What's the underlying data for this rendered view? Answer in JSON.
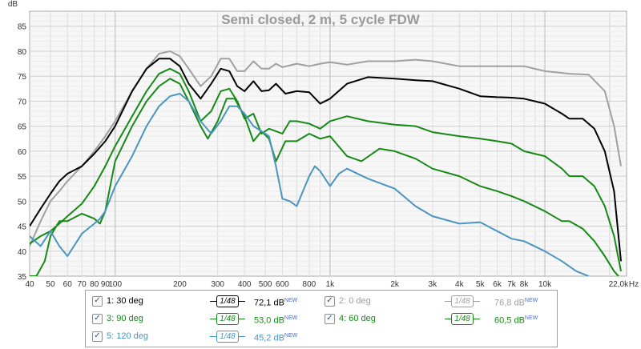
{
  "chart_data": {
    "type": "line",
    "title": "Semi closed, 2 m, 5 cycle FDW",
    "ylabel": "dB",
    "xunit": "Hz",
    "xscale": "log",
    "xlim": [
      40,
      24000
    ],
    "ylim": [
      35,
      88
    ],
    "yticks": [
      35,
      40,
      45,
      50,
      55,
      60,
      65,
      70,
      75,
      80,
      85
    ],
    "xticks": [
      {
        "v": 40,
        "label": "40"
      },
      {
        "v": 50,
        "label": "50"
      },
      {
        "v": 60,
        "label": "60"
      },
      {
        "v": 70,
        "label": "70"
      },
      {
        "v": 80,
        "label": "80"
      },
      {
        "v": 90,
        "label": "90"
      },
      {
        "v": 100,
        "label": "100"
      },
      {
        "v": 200,
        "label": "200"
      },
      {
        "v": 300,
        "label": "300"
      },
      {
        "v": 400,
        "label": "400"
      },
      {
        "v": 500,
        "label": "500"
      },
      {
        "v": 600,
        "label": "600"
      },
      {
        "v": 800,
        "label": "800"
      },
      {
        "v": 1000,
        "label": "1k"
      },
      {
        "v": 2000,
        "label": "2k"
      },
      {
        "v": 3000,
        "label": "3k"
      },
      {
        "v": 4000,
        "label": "4k"
      },
      {
        "v": 5000,
        "label": "5k"
      },
      {
        "v": 6000,
        "label": "6k"
      },
      {
        "v": 7000,
        "label": "7k"
      },
      {
        "v": 8000,
        "label": "8k"
      },
      {
        "v": 10000,
        "label": "10k"
      },
      {
        "v": 22000,
        "label": "22,0k"
      }
    ],
    "grid": true,
    "series": [
      {
        "name": "2: 0 deg",
        "color": "#a0a0a0",
        "points": [
          [
            40,
            41
          ],
          [
            45,
            46
          ],
          [
            50,
            50
          ],
          [
            55,
            52
          ],
          [
            60,
            54
          ],
          [
            70,
            57
          ],
          [
            80,
            60
          ],
          [
            90,
            63
          ],
          [
            100,
            66
          ],
          [
            120,
            72
          ],
          [
            140,
            76.5
          ],
          [
            160,
            79.5
          ],
          [
            180,
            80
          ],
          [
            200,
            79
          ],
          [
            220,
            76.5
          ],
          [
            250,
            73
          ],
          [
            280,
            75
          ],
          [
            310,
            78.5
          ],
          [
            340,
            78.5
          ],
          [
            370,
            76
          ],
          [
            400,
            76
          ],
          [
            440,
            78
          ],
          [
            480,
            76.5
          ],
          [
            520,
            76.5
          ],
          [
            560,
            77.5
          ],
          [
            600,
            76.8
          ],
          [
            700,
            77.5
          ],
          [
            800,
            77
          ],
          [
            900,
            77.5
          ],
          [
            1000,
            77.8
          ],
          [
            1200,
            77.3
          ],
          [
            1500,
            78
          ],
          [
            2000,
            78
          ],
          [
            2500,
            78.3
          ],
          [
            3000,
            78
          ],
          [
            4000,
            77
          ],
          [
            5000,
            77
          ],
          [
            6000,
            77
          ],
          [
            7000,
            77
          ],
          [
            8000,
            77
          ],
          [
            10000,
            76
          ],
          [
            13000,
            75.5
          ],
          [
            16000,
            75.3
          ],
          [
            19000,
            72
          ],
          [
            21000,
            65
          ],
          [
            22600,
            57
          ]
        ]
      },
      {
        "name": "1: 30 deg",
        "color": "#000000",
        "points": [
          [
            40,
            45
          ],
          [
            45,
            48.5
          ],
          [
            50,
            51.5
          ],
          [
            55,
            54
          ],
          [
            60,
            55.5
          ],
          [
            70,
            57
          ],
          [
            80,
            59.5
          ],
          [
            90,
            62
          ],
          [
            100,
            65
          ],
          [
            120,
            72
          ],
          [
            140,
            76.5
          ],
          [
            160,
            78.5
          ],
          [
            180,
            78.5
          ],
          [
            200,
            77
          ],
          [
            220,
            73.5
          ],
          [
            250,
            70.5
          ],
          [
            280,
            73.5
          ],
          [
            310,
            76.5
          ],
          [
            340,
            76
          ],
          [
            370,
            73
          ],
          [
            400,
            72
          ],
          [
            440,
            74
          ],
          [
            480,
            72
          ],
          [
            520,
            72.2
          ],
          [
            560,
            73.5
          ],
          [
            620,
            71.5
          ],
          [
            700,
            72
          ],
          [
            800,
            71.8
          ],
          [
            900,
            69.5
          ],
          [
            1000,
            70.5
          ],
          [
            1200,
            73.5
          ],
          [
            1500,
            74.8
          ],
          [
            2000,
            74.5
          ],
          [
            2500,
            74.2
          ],
          [
            3000,
            74
          ],
          [
            4000,
            72.5
          ],
          [
            5000,
            71
          ],
          [
            6000,
            70.8
          ],
          [
            7000,
            70.7
          ],
          [
            8000,
            70.5
          ],
          [
            10000,
            69.5
          ],
          [
            12000,
            67.5
          ],
          [
            13000,
            66.5
          ],
          [
            15000,
            66.5
          ],
          [
            17000,
            64.5
          ],
          [
            19000,
            60
          ],
          [
            21000,
            52
          ],
          [
            22600,
            38
          ]
        ]
      },
      {
        "name": "4: 60 deg",
        "color": "#168a16",
        "points": [
          [
            40,
            41.5
          ],
          [
            45,
            43
          ],
          [
            50,
            44
          ],
          [
            55,
            45.5
          ],
          [
            60,
            47
          ],
          [
            70,
            49.5
          ],
          [
            80,
            53
          ],
          [
            90,
            57
          ],
          [
            100,
            61
          ],
          [
            120,
            67
          ],
          [
            140,
            72
          ],
          [
            160,
            75.5
          ],
          [
            180,
            76.5
          ],
          [
            200,
            75.5
          ],
          [
            220,
            72
          ],
          [
            250,
            66
          ],
          [
            280,
            68
          ],
          [
            310,
            72
          ],
          [
            340,
            72.5
          ],
          [
            370,
            70
          ],
          [
            400,
            66.5
          ],
          [
            440,
            67.5
          ],
          [
            480,
            63.5
          ],
          [
            520,
            64.5
          ],
          [
            560,
            64
          ],
          [
            600,
            63.5
          ],
          [
            650,
            66
          ],
          [
            700,
            66
          ],
          [
            800,
            65.5
          ],
          [
            900,
            64.5
          ],
          [
            1000,
            66
          ],
          [
            1200,
            67
          ],
          [
            1500,
            66
          ],
          [
            2000,
            65.3
          ],
          [
            2500,
            65
          ],
          [
            3000,
            63.8
          ],
          [
            4000,
            63
          ],
          [
            5000,
            62.5
          ],
          [
            6000,
            62
          ],
          [
            7000,
            61.5
          ],
          [
            8000,
            60
          ],
          [
            10000,
            59
          ],
          [
            12000,
            56.5
          ],
          [
            13000,
            55
          ],
          [
            15000,
            55
          ],
          [
            17000,
            53
          ],
          [
            19000,
            49
          ],
          [
            21000,
            43
          ],
          [
            22600,
            36
          ]
        ]
      },
      {
        "name": "3: 90 deg",
        "color": "#168a16",
        "points": [
          [
            40,
            35
          ],
          [
            43,
            35
          ],
          [
            47,
            38
          ],
          [
            50,
            43
          ],
          [
            55,
            46
          ],
          [
            60,
            46
          ],
          [
            70,
            47.5
          ],
          [
            80,
            46.5
          ],
          [
            85,
            45.5
          ],
          [
            90,
            48
          ],
          [
            100,
            58
          ],
          [
            120,
            65
          ],
          [
            140,
            70
          ],
          [
            160,
            73
          ],
          [
            180,
            74.5
          ],
          [
            200,
            73.5
          ],
          [
            220,
            70
          ],
          [
            250,
            65
          ],
          [
            270,
            62.5
          ],
          [
            300,
            66
          ],
          [
            330,
            70.5
          ],
          [
            360,
            70.5
          ],
          [
            400,
            67
          ],
          [
            440,
            62
          ],
          [
            480,
            64
          ],
          [
            520,
            62.5
          ],
          [
            560,
            58
          ],
          [
            620,
            62
          ],
          [
            700,
            62
          ],
          [
            800,
            63.5
          ],
          [
            900,
            62.5
          ],
          [
            1000,
            63
          ],
          [
            1200,
            59
          ],
          [
            1400,
            58
          ],
          [
            1700,
            60.5
          ],
          [
            2000,
            60
          ],
          [
            2500,
            58.5
          ],
          [
            3000,
            56.5
          ],
          [
            4000,
            55
          ],
          [
            5000,
            53
          ],
          [
            6000,
            52
          ],
          [
            7000,
            51
          ],
          [
            8000,
            50
          ],
          [
            10000,
            48
          ],
          [
            12000,
            46
          ],
          [
            13000,
            46
          ],
          [
            15000,
            44.5
          ],
          [
            17000,
            42
          ],
          [
            19000,
            39
          ],
          [
            21000,
            36
          ],
          [
            22000,
            35
          ]
        ]
      },
      {
        "name": "5: 120 deg",
        "color": "#4a96c0",
        "points": [
          [
            40,
            43
          ],
          [
            45,
            41
          ],
          [
            50,
            44
          ],
          [
            55,
            41
          ],
          [
            60,
            39
          ],
          [
            70,
            43.5
          ],
          [
            80,
            45.5
          ],
          [
            85,
            46.5
          ],
          [
            90,
            48
          ],
          [
            100,
            53
          ],
          [
            120,
            59
          ],
          [
            140,
            65
          ],
          [
            160,
            69
          ],
          [
            180,
            71
          ],
          [
            200,
            71.5
          ],
          [
            220,
            70
          ],
          [
            250,
            66
          ],
          [
            280,
            63.5
          ],
          [
            310,
            66
          ],
          [
            340,
            69
          ],
          [
            370,
            69
          ],
          [
            400,
            67.5
          ],
          [
            440,
            65
          ],
          [
            480,
            64
          ],
          [
            520,
            63
          ],
          [
            560,
            57
          ],
          [
            600,
            50.5
          ],
          [
            650,
            50
          ],
          [
            700,
            49
          ],
          [
            800,
            55
          ],
          [
            850,
            57
          ],
          [
            900,
            56
          ],
          [
            1000,
            53
          ],
          [
            1100,
            55.5
          ],
          [
            1200,
            56.5
          ],
          [
            1500,
            54.5
          ],
          [
            2000,
            52.5
          ],
          [
            2500,
            49
          ],
          [
            3000,
            47
          ],
          [
            4000,
            45.5
          ],
          [
            5000,
            45.8
          ],
          [
            6000,
            44
          ],
          [
            7000,
            42.5
          ],
          [
            8000,
            42
          ],
          [
            10000,
            40
          ],
          [
            12000,
            38
          ],
          [
            14000,
            36
          ],
          [
            16000,
            35
          ]
        ]
      }
    ]
  },
  "legend": {
    "items": [
      {
        "label": "1: 30 deg",
        "color": "#000000",
        "smooth": "1/48",
        "value": "72,1 dB",
        "badge": "NEW",
        "checked": "✓"
      },
      {
        "label": "2: 0 deg",
        "color": "#a0a0a0",
        "smooth": "1/48",
        "value": "76,8 dB",
        "badge": "NEW",
        "checked": "✓"
      },
      {
        "label": "3: 90 deg",
        "color": "#168a16",
        "smooth": "1/48",
        "value": "53,0 dB",
        "badge": "NEW",
        "checked": "✓"
      },
      {
        "label": "4: 60 deg",
        "color": "#168a16",
        "smooth": "1/48",
        "value": "60,5 dB",
        "badge": "NEW",
        "checked": "✓"
      },
      {
        "label": "5: 120 deg",
        "color": "#4a96c0",
        "smooth": "1/48",
        "value": "45,2 dB",
        "badge": "NEW",
        "checked": "✓"
      }
    ]
  }
}
